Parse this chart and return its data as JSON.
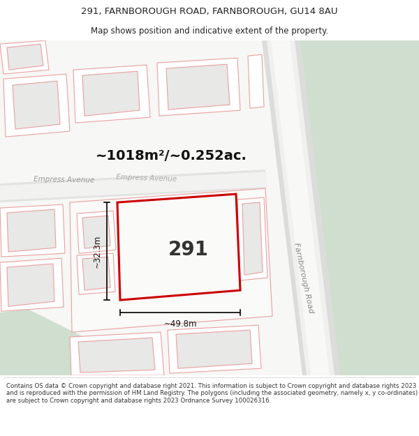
{
  "title_line1": "291, FARNBOROUGH ROAD, FARNBOROUGH, GU14 8AU",
  "title_line2": "Map shows position and indicative extent of the property.",
  "area_text": "~1018m²/~0.252ac.",
  "label_291": "291",
  "label_width": "~49.8m",
  "label_height": "~32.3m",
  "road_label": "Farnborough Road",
  "avenue_label_1": "Empress Avenue",
  "avenue_label_2": "Empress Avenue",
  "footer_text": "Contains OS data © Crown copyright and database right 2021. This information is subject to Crown copyright and database rights 2023 and is reproduced with the permission of HM Land Registry. The polygons (including the associated geometry, namely x, y co-ordinates) are subject to Crown copyright and database rights 2023 Ordnance Survey 100026316.",
  "bg_color": "#ffffff",
  "fig_width": 6.0,
  "fig_height": 6.25
}
